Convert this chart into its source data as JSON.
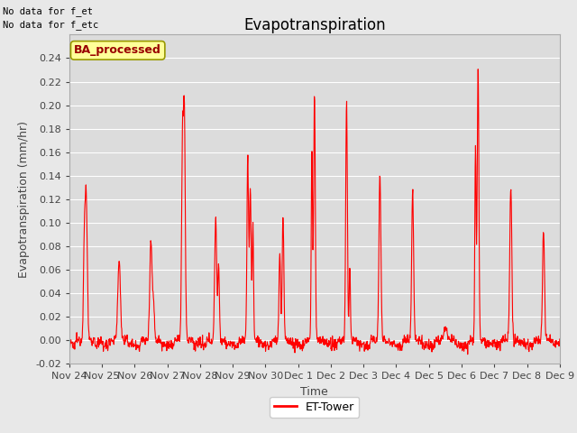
{
  "title": "Evapotranspiration",
  "ylabel": "Evapotranspiration (mm/hr)",
  "xlabel": "Time",
  "ylim": [
    -0.02,
    0.26
  ],
  "yticks": [
    -0.02,
    0.0,
    0.02,
    0.04,
    0.06,
    0.08,
    0.1,
    0.12,
    0.14,
    0.16,
    0.18,
    0.2,
    0.22,
    0.24
  ],
  "line_color": "#ff0000",
  "line_width": 0.8,
  "bg_color": "#e8e8e8",
  "plot_bg_color": "#dcdcdc",
  "text_no_data": [
    "No data for f_et",
    "No data for f_etc"
  ],
  "legend_label": "ET-Tower",
  "watermark_text": "BA_processed",
  "watermark_bg": "#ffff99",
  "watermark_border": "#999900",
  "watermark_text_color": "#990000",
  "x_tick_labels": [
    "Nov 24",
    "Nov 25",
    "Nov 26",
    "Nov 27",
    "Nov 28",
    "Nov 29",
    "Nov 30",
    "Dec 1",
    "Dec 2",
    "Dec 3",
    "Dec 4",
    "Dec 5",
    "Dec 6",
    "Dec 7",
    "Dec 8",
    "Dec 9"
  ],
  "x_tick_positions": [
    0,
    1,
    2,
    3,
    4,
    5,
    6,
    7,
    8,
    9,
    10,
    11,
    12,
    13,
    14,
    15
  ],
  "title_fontsize": 12,
  "axis_fontsize": 9,
  "tick_fontsize": 8
}
